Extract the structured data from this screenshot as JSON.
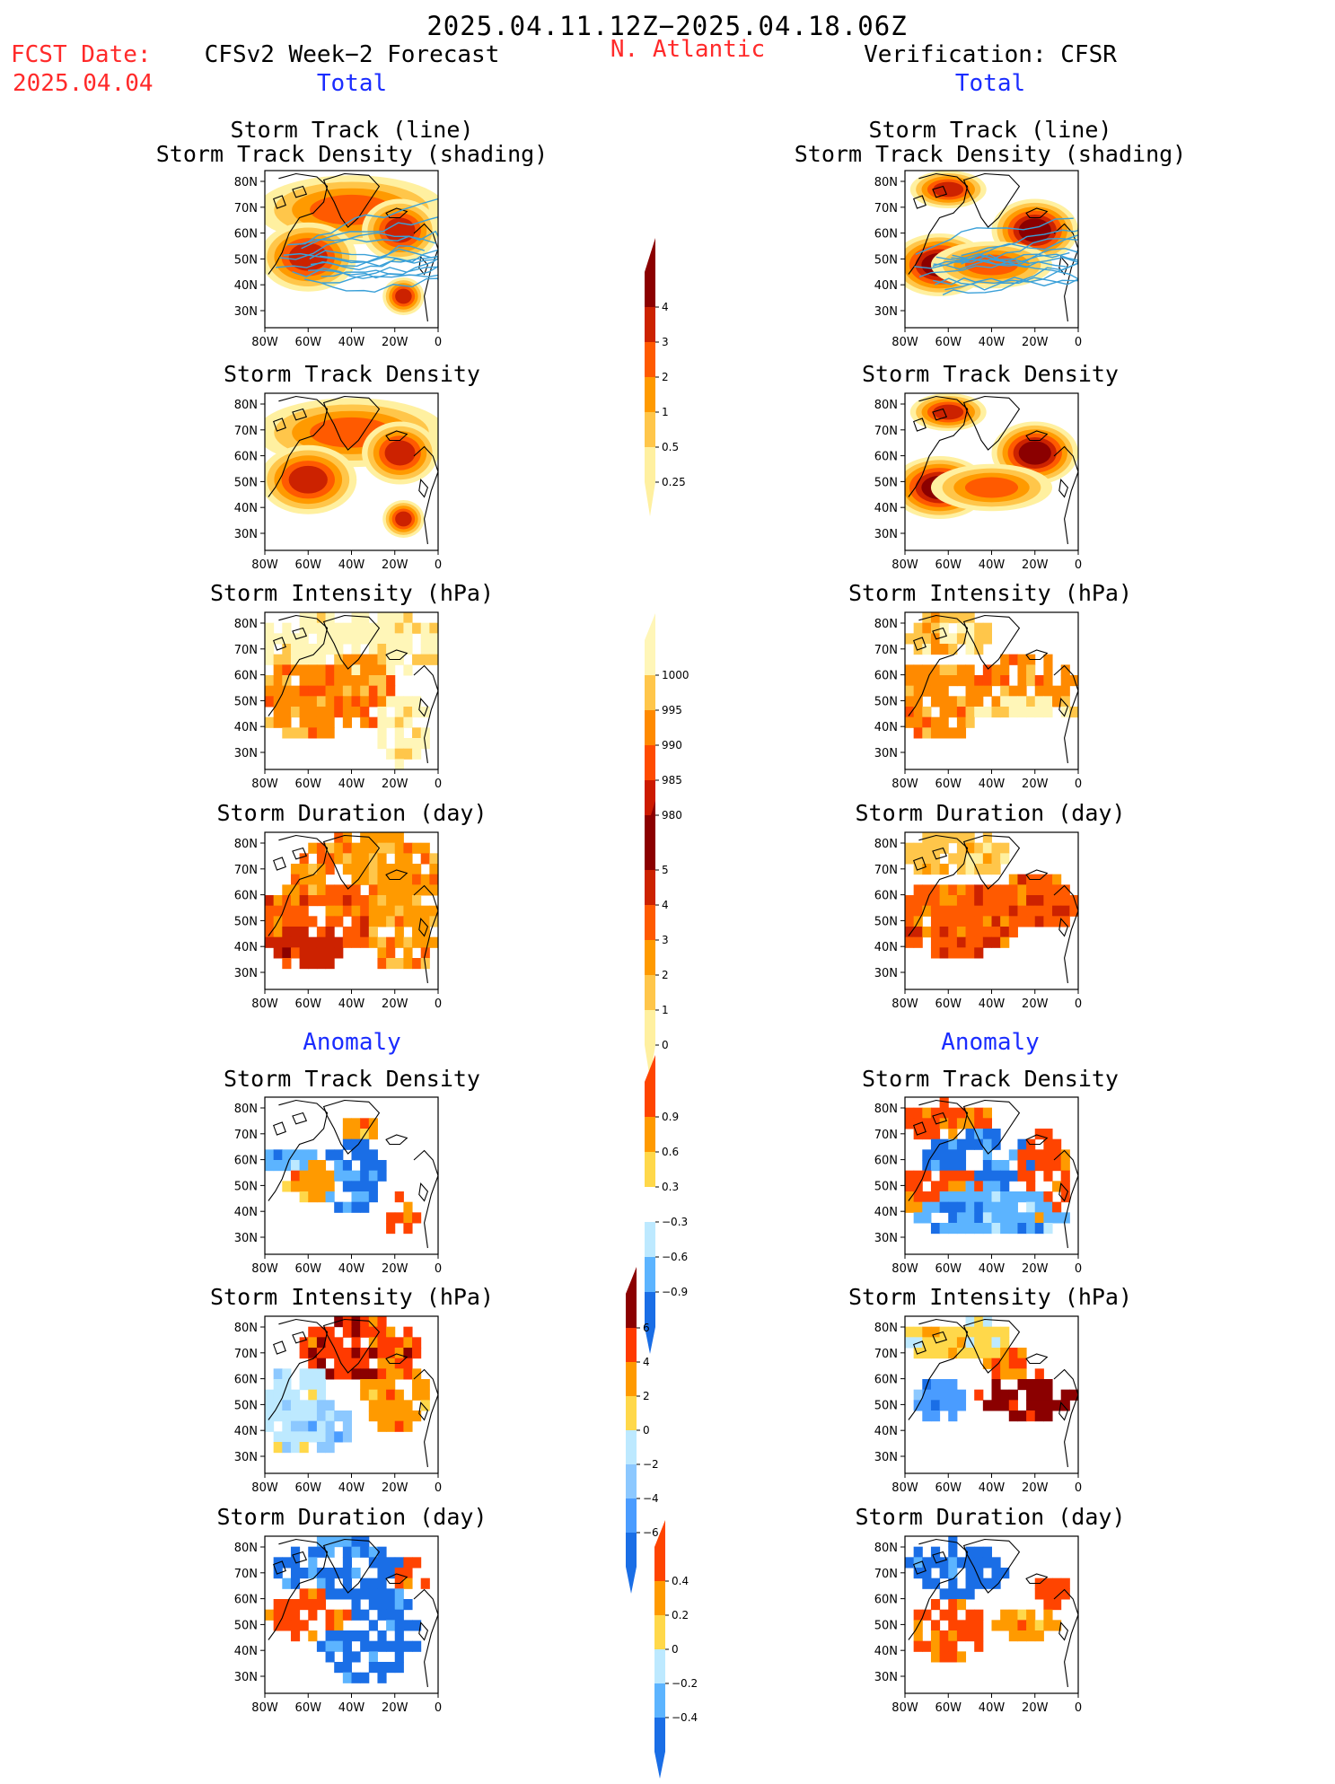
{
  "header": {
    "date_range": "2025.04.11.12Z−2025.04.18.06Z",
    "fcst_label": "FCST Date:",
    "fcst_date": "2025.04.04",
    "forecast_title": "CFSv2 Week−2 Forecast",
    "region": "N. Atlantic",
    "verification_title": "Verification: CFSR",
    "left_section": "Total",
    "right_section": "Total"
  },
  "anomaly_headers": {
    "left": "Anomaly",
    "right": "Anomaly"
  },
  "panel_titles": {
    "track_line": "Storm Track (line)",
    "track_density_shading": "Storm Track Density (shading)",
    "track_density": "Storm Track Density",
    "intensity": "Storm Intensity (hPa)",
    "duration": "Storm Duration (day)"
  },
  "axes": {
    "lat_labels": [
      "80N",
      "70N",
      "60N",
      "50N",
      "40N",
      "30N"
    ],
    "lon_labels": [
      "80W",
      "60W",
      "40W",
      "20W",
      "0"
    ]
  },
  "colorbars": [
    {
      "id": "density",
      "labels": [
        "4",
        "3",
        "2",
        "1",
        "0.5",
        "0.25"
      ],
      "colors": [
        "#8b0000",
        "#cc2200",
        "#ff5a00",
        "#ff9a00",
        "#ffc64a",
        "#fff0a0"
      ]
    },
    {
      "id": "intensity",
      "labels": [
        "1000",
        "995",
        "990",
        "985",
        "980"
      ],
      "colors": [
        "#fff6b8",
        "#ffc64a",
        "#ff8a00",
        "#ff4b00",
        "#cc1a00",
        "#8b0000"
      ]
    },
    {
      "id": "duration",
      "labels": [
        "5",
        "4",
        "3",
        "2",
        "1",
        "0"
      ],
      "colors": [
        "#8b0000",
        "#cc2200",
        "#ff5a00",
        "#ff9a00",
        "#ffc64a",
        "#fff0a0"
      ]
    },
    {
      "id": "density-anom",
      "labels": [
        "0.9",
        "0.6",
        "0.3",
        "−0.3",
        "−0.6",
        "−0.9"
      ],
      "colors": [
        "#ff4400",
        "#ff9a00",
        "#ffd84a",
        "#ffffff",
        "#bde9ff",
        "#5cb4ff",
        "#1a6ee6"
      ]
    },
    {
      "id": "intensity-anom",
      "labels": [
        "6",
        "4",
        "2",
        "0",
        "−2",
        "−4",
        "−6"
      ],
      "colors": [
        "#8b0000",
        "#ff3a00",
        "#ff9a00",
        "#ffd84a",
        "#bde9ff",
        "#8cc8ff",
        "#4a9cff",
        "#1a6ee6"
      ]
    },
    {
      "id": "duration-anom",
      "labels": [
        "0.4",
        "0.2",
        "0",
        "−0.2",
        "−0.4"
      ],
      "colors": [
        "#ff4400",
        "#ff9a00",
        "#ffd84a",
        "#bde9ff",
        "#5cb4ff",
        "#1a6ee6"
      ]
    }
  ]
}
